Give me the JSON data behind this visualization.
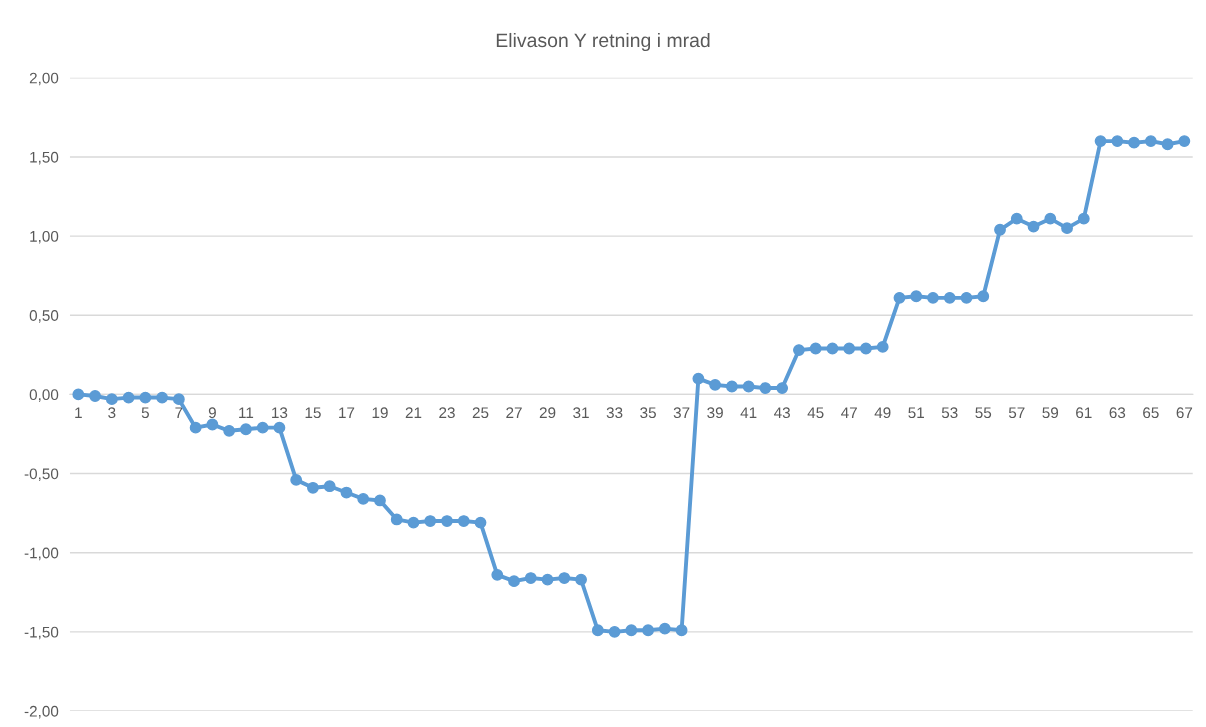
{
  "chart_data": {
    "type": "line",
    "title": "Elivason Y retning i mrad",
    "categories": [
      "1",
      null,
      "3",
      null,
      "5",
      null,
      "7",
      null,
      "9",
      null,
      "11",
      null,
      "13",
      null,
      "15",
      null,
      "17",
      null,
      "19",
      null,
      "21",
      null,
      "23",
      null,
      "25",
      null,
      "27",
      null,
      "29",
      null,
      "31",
      null,
      "33",
      null,
      "35",
      null,
      "37",
      null,
      "39",
      null,
      "41",
      null,
      "43",
      null,
      "45",
      null,
      "47",
      null,
      "49",
      null,
      "51",
      null,
      "53",
      null,
      "55",
      null,
      "57",
      null,
      "59",
      null,
      "61",
      null,
      "63",
      null,
      "65",
      null,
      "67"
    ],
    "series": [
      {
        "color": "#5b9bd5",
        "values": [
          0.0,
          -0.01,
          -0.03,
          -0.02,
          -0.02,
          -0.02,
          -0.03,
          -0.21,
          -0.19,
          -0.23,
          -0.22,
          -0.21,
          -0.21,
          -0.54,
          -0.59,
          -0.58,
          -0.62,
          -0.66,
          -0.67,
          -0.79,
          -0.81,
          -0.8,
          -0.8,
          -0.8,
          -0.81,
          -1.14,
          -1.18,
          -1.16,
          -1.17,
          -1.16,
          -1.17,
          -1.49,
          -1.5,
          -1.49,
          -1.49,
          -1.48,
          -1.49,
          0.1,
          0.06,
          0.05,
          0.05,
          0.04,
          0.04,
          0.28,
          0.29,
          0.29,
          0.29,
          0.29,
          0.3,
          0.61,
          0.62,
          0.61,
          0.61,
          0.61,
          0.62,
          1.04,
          1.11,
          1.06,
          1.11,
          1.05,
          1.11,
          1.6,
          1.6,
          1.59,
          1.6,
          1.58,
          1.6
        ]
      }
    ],
    "ylim": [
      -2,
      2
    ],
    "yticks": [
      {
        "value": -2,
        "label": "-2,00"
      },
      {
        "value": -1.5,
        "label": "-1,50"
      },
      {
        "value": -1,
        "label": "-1,00"
      },
      {
        "value": -0.5,
        "label": "-0,50"
      },
      {
        "value": 0,
        "label": "0,00"
      },
      {
        "value": 0.5,
        "label": "0,50"
      },
      {
        "value": 1,
        "label": "1,00"
      },
      {
        "value": 1.5,
        "label": "1,50"
      },
      {
        "value": 2,
        "label": "2,00"
      }
    ],
    "grid": "y",
    "marker": "circle",
    "line_style": "solid"
  }
}
